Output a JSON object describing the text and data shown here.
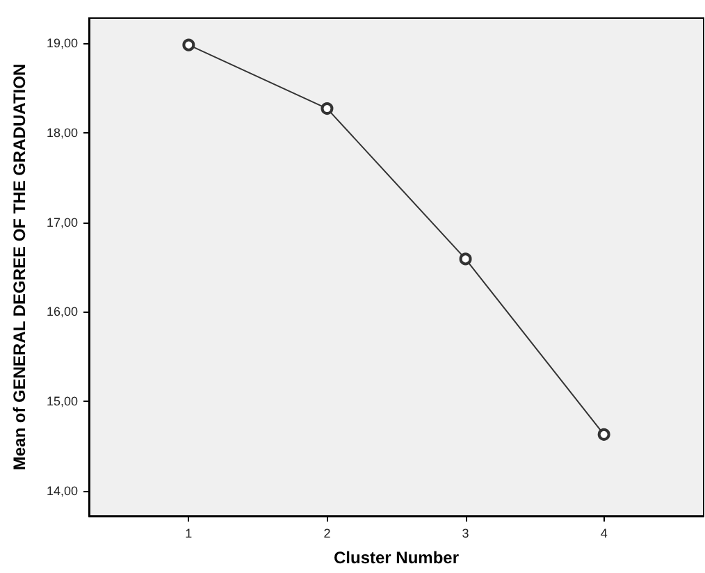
{
  "chart_data": {
    "type": "line",
    "xlabel": "Cluster Number",
    "ylabel": "Mean of GENERAL DEGREE OF THE GRADUATION",
    "x": [
      1,
      2,
      3,
      4
    ],
    "series": [
      {
        "color": "#333333",
        "values": [
          18.98,
          18.27,
          16.59,
          14.63
        ]
      }
    ],
    "xlim": [
      0.28,
      4.72
    ],
    "xticks": [
      1,
      2,
      3,
      4
    ],
    "ylim": [
      13.72,
      19.28
    ],
    "yticks": [
      {
        "value": 14,
        "label": "14,00"
      },
      {
        "value": 15,
        "label": "15,00"
      },
      {
        "value": 16,
        "label": "16,00"
      },
      {
        "value": 17,
        "label": "17,00"
      },
      {
        "value": 18,
        "label": "18,00"
      },
      {
        "value": 19,
        "label": "19,00"
      }
    ],
    "grid": false,
    "marker": "circle",
    "line_style": "solid"
  }
}
